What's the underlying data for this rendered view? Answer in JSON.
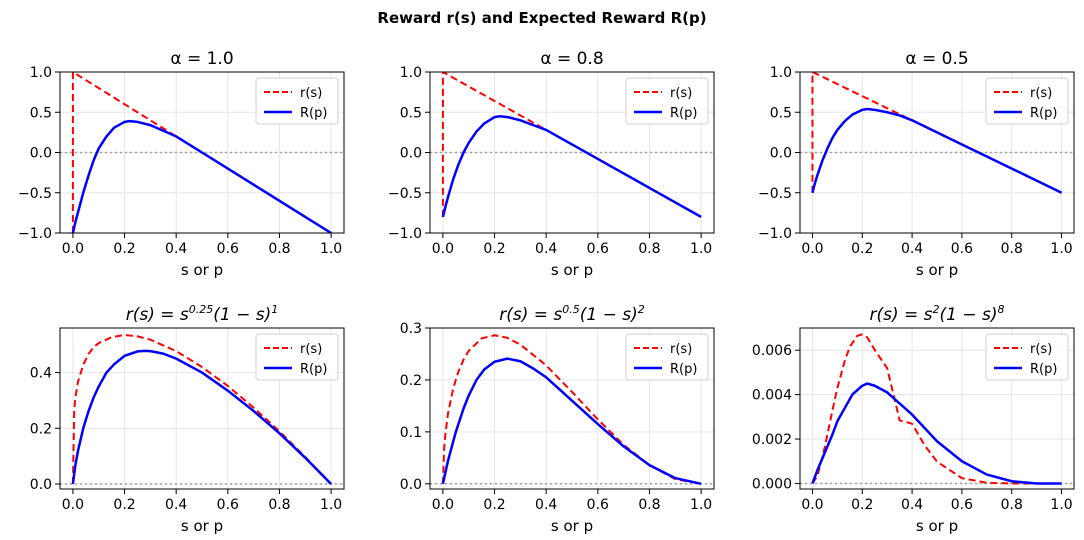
{
  "figure": {
    "suptitle": "Reward r(s) and Expected Reward R(p)",
    "colors": {
      "r": "#ff0000",
      "R": "#0000ff",
      "grid": "#e6e6e6",
      "zero_line": "#a0a0a0"
    }
  },
  "chart_data": [
    {
      "type": "line",
      "title": "α = 1.0",
      "xlabel": "s or p",
      "ylabel": "",
      "xlim": [
        -0.05,
        1.05
      ],
      "ylim": [
        -1.0,
        1.0
      ],
      "xticks": [
        "0.0",
        "0.2",
        "0.4",
        "0.6",
        "0.8",
        "1.0"
      ],
      "yticks": [
        "−1.0",
        "−0.5",
        "0.0",
        "0.5",
        "1.0"
      ],
      "ytick_values": [
        -1.0,
        -0.5,
        0.0,
        0.5,
        1.0
      ],
      "grid": true,
      "zero_line": true,
      "legend": {
        "position": "top-right",
        "entries": [
          "r(s)",
          "R(p)"
        ]
      },
      "series": [
        {
          "name": "r(s)",
          "style": "dashed",
          "color": "#ff0000",
          "x": [
            0.0,
            0.0,
            0.2,
            0.4,
            0.6,
            0.8,
            1.0
          ],
          "y": [
            -1.0,
            1.0,
            0.6,
            0.2,
            -0.2,
            -0.6,
            -1.0
          ]
        },
        {
          "name": "R(p)",
          "style": "solid",
          "color": "#0000ff",
          "x": [
            0.0,
            0.01,
            0.02,
            0.04,
            0.06,
            0.08,
            0.1,
            0.13,
            0.16,
            0.2,
            0.22,
            0.25,
            0.3,
            0.35,
            0.4,
            0.5,
            0.6,
            0.7,
            0.8,
            0.9,
            1.0
          ],
          "y": [
            -1.0,
            -0.86,
            -0.74,
            -0.5,
            -0.29,
            -0.1,
            0.05,
            0.2,
            0.31,
            0.38,
            0.39,
            0.38,
            0.34,
            0.27,
            0.2,
            0.0,
            -0.2,
            -0.4,
            -0.6,
            -0.8,
            -1.0
          ]
        }
      ]
    },
    {
      "type": "line",
      "title": "α = 0.8",
      "xlabel": "s or p",
      "ylabel": "",
      "xlim": [
        -0.05,
        1.05
      ],
      "ylim": [
        -1.0,
        1.0
      ],
      "xticks": [
        "0.0",
        "0.2",
        "0.4",
        "0.6",
        "0.8",
        "1.0"
      ],
      "yticks": [
        "−1.0",
        "−0.5",
        "0.0",
        "0.5",
        "1.0"
      ],
      "ytick_values": [
        -1.0,
        -0.5,
        0.0,
        0.5,
        1.0
      ],
      "grid": true,
      "zero_line": true,
      "legend": {
        "position": "top-right",
        "entries": [
          "r(s)",
          "R(p)"
        ]
      },
      "series": [
        {
          "name": "r(s)",
          "style": "dashed",
          "color": "#ff0000",
          "x": [
            0.0,
            0.0,
            0.2,
            0.4,
            0.6,
            0.8,
            1.0
          ],
          "y": [
            -0.8,
            1.0,
            0.64,
            0.28,
            -0.08,
            -0.44,
            -0.8
          ]
        },
        {
          "name": "R(p)",
          "style": "solid",
          "color": "#0000ff",
          "x": [
            0.0,
            0.01,
            0.02,
            0.04,
            0.06,
            0.08,
            0.1,
            0.13,
            0.16,
            0.2,
            0.22,
            0.25,
            0.3,
            0.35,
            0.4,
            0.5,
            0.6,
            0.7,
            0.8,
            0.9,
            1.0
          ],
          "y": [
            -0.8,
            -0.67,
            -0.55,
            -0.33,
            -0.15,
            0.0,
            0.12,
            0.26,
            0.36,
            0.44,
            0.45,
            0.44,
            0.4,
            0.34,
            0.28,
            0.1,
            -0.08,
            -0.26,
            -0.44,
            -0.62,
            -0.8
          ]
        }
      ]
    },
    {
      "type": "line",
      "title": "α = 0.5",
      "xlabel": "s or p",
      "ylabel": "",
      "xlim": [
        -0.05,
        1.05
      ],
      "ylim": [
        -1.0,
        1.0
      ],
      "xticks": [
        "0.0",
        "0.2",
        "0.4",
        "0.6",
        "0.8",
        "1.0"
      ],
      "yticks": [
        "−1.0",
        "−0.5",
        "0.0",
        "0.5",
        "1.0"
      ],
      "ytick_values": [
        -1.0,
        -0.5,
        0.0,
        0.5,
        1.0
      ],
      "grid": true,
      "zero_line": true,
      "legend": {
        "position": "top-right",
        "entries": [
          "r(s)",
          "R(p)"
        ]
      },
      "series": [
        {
          "name": "r(s)",
          "style": "dashed",
          "color": "#ff0000",
          "x": [
            0.0,
            0.0,
            0.2,
            0.4,
            0.6,
            0.8,
            1.0
          ],
          "y": [
            -0.5,
            1.0,
            0.7,
            0.4,
            0.1,
            -0.2,
            -0.5
          ]
        },
        {
          "name": "R(p)",
          "style": "solid",
          "color": "#0000ff",
          "x": [
            0.0,
            0.01,
            0.02,
            0.04,
            0.06,
            0.08,
            0.1,
            0.13,
            0.16,
            0.2,
            0.22,
            0.25,
            0.3,
            0.35,
            0.4,
            0.5,
            0.6,
            0.7,
            0.8,
            0.9,
            1.0
          ],
          "y": [
            -0.5,
            -0.38,
            -0.28,
            -0.1,
            0.05,
            0.18,
            0.28,
            0.39,
            0.47,
            0.53,
            0.54,
            0.53,
            0.5,
            0.46,
            0.4,
            0.25,
            0.1,
            -0.05,
            -0.2,
            -0.35,
            -0.5
          ]
        }
      ]
    },
    {
      "type": "line",
      "title": {
        "base": "r(s) = s",
        "exp1": "0.25",
        "mid": "(1 − s)",
        "exp2": "1"
      },
      "xlabel": "s or p",
      "ylabel": "",
      "xlim": [
        -0.05,
        1.05
      ],
      "ylim": [
        -0.018,
        0.56
      ],
      "xticks": [
        "0.0",
        "0.2",
        "0.4",
        "0.6",
        "0.8",
        "1.0"
      ],
      "yticks": [
        "0.0",
        "0.2",
        "0.4"
      ],
      "ytick_values": [
        0.0,
        0.2,
        0.4
      ],
      "grid": true,
      "zero_line": true,
      "legend": {
        "position": "top-right",
        "entries": [
          "r(s)",
          "R(p)"
        ]
      },
      "series": [
        {
          "name": "r(s)",
          "style": "dashed",
          "color": "#ff0000",
          "x": [
            0.0,
            0.005,
            0.01,
            0.02,
            0.04,
            0.06,
            0.08,
            0.1,
            0.15,
            0.2,
            0.25,
            0.3,
            0.4,
            0.5,
            0.6,
            0.7,
            0.8,
            0.9,
            1.0
          ],
          "y": [
            0.0,
            0.265,
            0.314,
            0.368,
            0.428,
            0.466,
            0.491,
            0.506,
            0.527,
            0.535,
            0.53,
            0.518,
            0.477,
            0.42,
            0.352,
            0.274,
            0.189,
            0.097,
            0.0
          ]
        },
        {
          "name": "R(p)",
          "style": "solid",
          "color": "#0000ff",
          "x": [
            0.0,
            0.01,
            0.02,
            0.04,
            0.06,
            0.08,
            0.1,
            0.13,
            0.16,
            0.2,
            0.25,
            0.28,
            0.3,
            0.35,
            0.4,
            0.5,
            0.6,
            0.7,
            0.8,
            0.9,
            1.0
          ],
          "y": [
            0.0,
            0.07,
            0.12,
            0.2,
            0.26,
            0.31,
            0.35,
            0.4,
            0.43,
            0.46,
            0.476,
            0.478,
            0.477,
            0.468,
            0.45,
            0.4,
            0.335,
            0.262,
            0.182,
            0.094,
            0.0
          ]
        }
      ]
    },
    {
      "type": "line",
      "title": {
        "base": "r(s) = s",
        "exp1": "0.5",
        "mid": "(1 − s)",
        "exp2": "2"
      },
      "xlabel": "s or p",
      "ylabel": "",
      "xlim": [
        -0.05,
        1.05
      ],
      "ylim": [
        -0.01,
        0.3
      ],
      "xticks": [
        "0.0",
        "0.2",
        "0.4",
        "0.6",
        "0.8",
        "1.0"
      ],
      "yticks": [
        "0.0",
        "0.1",
        "0.2",
        "0.3"
      ],
      "ytick_values": [
        0.0,
        0.1,
        0.2,
        0.3
      ],
      "grid": true,
      "zero_line": true,
      "legend": {
        "position": "top-right",
        "entries": [
          "r(s)",
          "R(p)"
        ]
      },
      "series": [
        {
          "name": "r(s)",
          "style": "dashed",
          "color": "#ff0000",
          "x": [
            0.0,
            0.005,
            0.01,
            0.02,
            0.04,
            0.06,
            0.08,
            0.1,
            0.15,
            0.2,
            0.25,
            0.3,
            0.4,
            0.5,
            0.6,
            0.7,
            0.8,
            0.9,
            1.0
          ],
          "y": [
            0.0,
            0.07,
            0.098,
            0.136,
            0.184,
            0.216,
            0.239,
            0.256,
            0.28,
            0.286,
            0.281,
            0.268,
            0.228,
            0.177,
            0.124,
            0.075,
            0.036,
            0.009,
            0.0
          ]
        },
        {
          "name": "R(p)",
          "style": "solid",
          "color": "#0000ff",
          "x": [
            0.0,
            0.02,
            0.05,
            0.08,
            0.1,
            0.13,
            0.16,
            0.2,
            0.25,
            0.3,
            0.35,
            0.4,
            0.5,
            0.6,
            0.7,
            0.8,
            0.9,
            1.0
          ],
          "y": [
            0.0,
            0.045,
            0.1,
            0.145,
            0.17,
            0.2,
            0.22,
            0.235,
            0.241,
            0.236,
            0.222,
            0.205,
            0.16,
            0.115,
            0.072,
            0.036,
            0.011,
            0.0
          ]
        }
      ]
    },
    {
      "type": "line",
      "title": {
        "base": "r(s) = s",
        "exp1": "2",
        "mid": "(1 − s)",
        "exp2": "8"
      },
      "xlabel": "s or p",
      "ylabel": "",
      "xlim": [
        -0.05,
        1.05
      ],
      "ylim": [
        -0.00025,
        0.007
      ],
      "xticks": [
        "0.0",
        "0.2",
        "0.4",
        "0.6",
        "0.8",
        "1.0"
      ],
      "yticks": [
        "0.000",
        "0.002",
        "0.004",
        "0.006"
      ],
      "ytick_values": [
        0.0,
        0.002,
        0.004,
        0.006
      ],
      "grid": true,
      "zero_line": true,
      "legend": {
        "position": "top-right",
        "entries": [
          "r(s)",
          "R(p)"
        ]
      },
      "series": [
        {
          "name": "r(s)",
          "style": "dashed",
          "color": "#ff0000",
          "x": [
            0.0,
            0.02,
            0.05,
            0.08,
            0.1,
            0.13,
            0.15,
            0.18,
            0.2,
            0.22,
            0.25,
            0.3,
            0.35,
            0.4,
            0.45,
            0.5,
            0.6,
            0.7,
            0.8,
            0.9,
            1.0
          ],
          "y": [
            0.0,
            0.00034,
            0.00166,
            0.00328,
            0.0043,
            0.00553,
            0.00615,
            0.00665,
            0.00671,
            0.00658,
            0.00601,
            0.00519,
            0.00284,
            0.00269,
            0.00172,
            0.00098,
            0.00024,
            3e-05,
            0.0,
            0.0,
            0.0
          ]
        },
        {
          "name": "R(p)",
          "style": "solid",
          "color": "#0000ff",
          "x": [
            0.0,
            0.02,
            0.05,
            0.08,
            0.1,
            0.13,
            0.16,
            0.2,
            0.22,
            0.25,
            0.3,
            0.35,
            0.4,
            0.45,
            0.5,
            0.6,
            0.7,
            0.8,
            0.9,
            1.0
          ],
          "y": [
            0.0,
            0.0006,
            0.0014,
            0.0022,
            0.0028,
            0.0034,
            0.004,
            0.0044,
            0.0045,
            0.0044,
            0.0041,
            0.0036,
            0.0031,
            0.0025,
            0.0019,
            0.001,
            0.0004,
            0.0001,
            0.0,
            0.0
          ]
        }
      ]
    }
  ]
}
